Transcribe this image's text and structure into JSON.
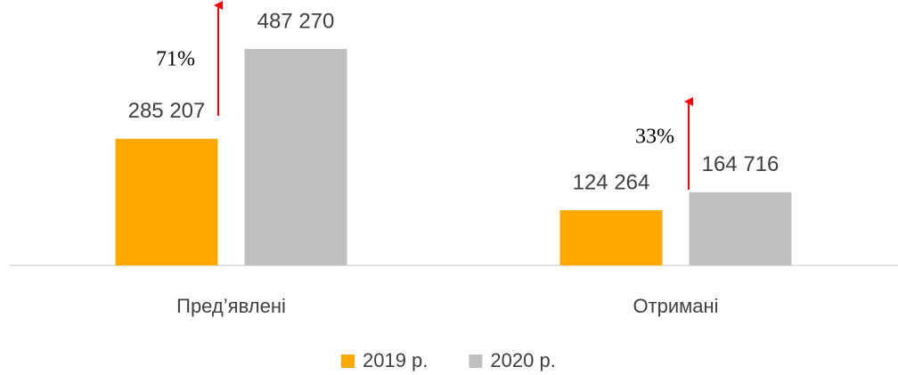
{
  "chart_data": {
    "type": "bar",
    "categories": [
      "Пред’явлені",
      "Отримані"
    ],
    "series": [
      {
        "name": "2019 р.",
        "color": "#FFA800",
        "values": [
          285207,
          124264
        ],
        "value_labels": [
          "285 207",
          "124 264"
        ]
      },
      {
        "name": "2020 р.",
        "color": "#BFBFBF",
        "values": [
          487270,
          164716
        ],
        "value_labels": [
          "487 270",
          "164 716"
        ]
      }
    ],
    "ylim": [
      0,
      500000
    ],
    "annotations": [
      {
        "text": "71%",
        "color": "#FF0000"
      },
      {
        "text": "33%",
        "color": "#FF0000"
      }
    ],
    "legend": "bottom"
  }
}
